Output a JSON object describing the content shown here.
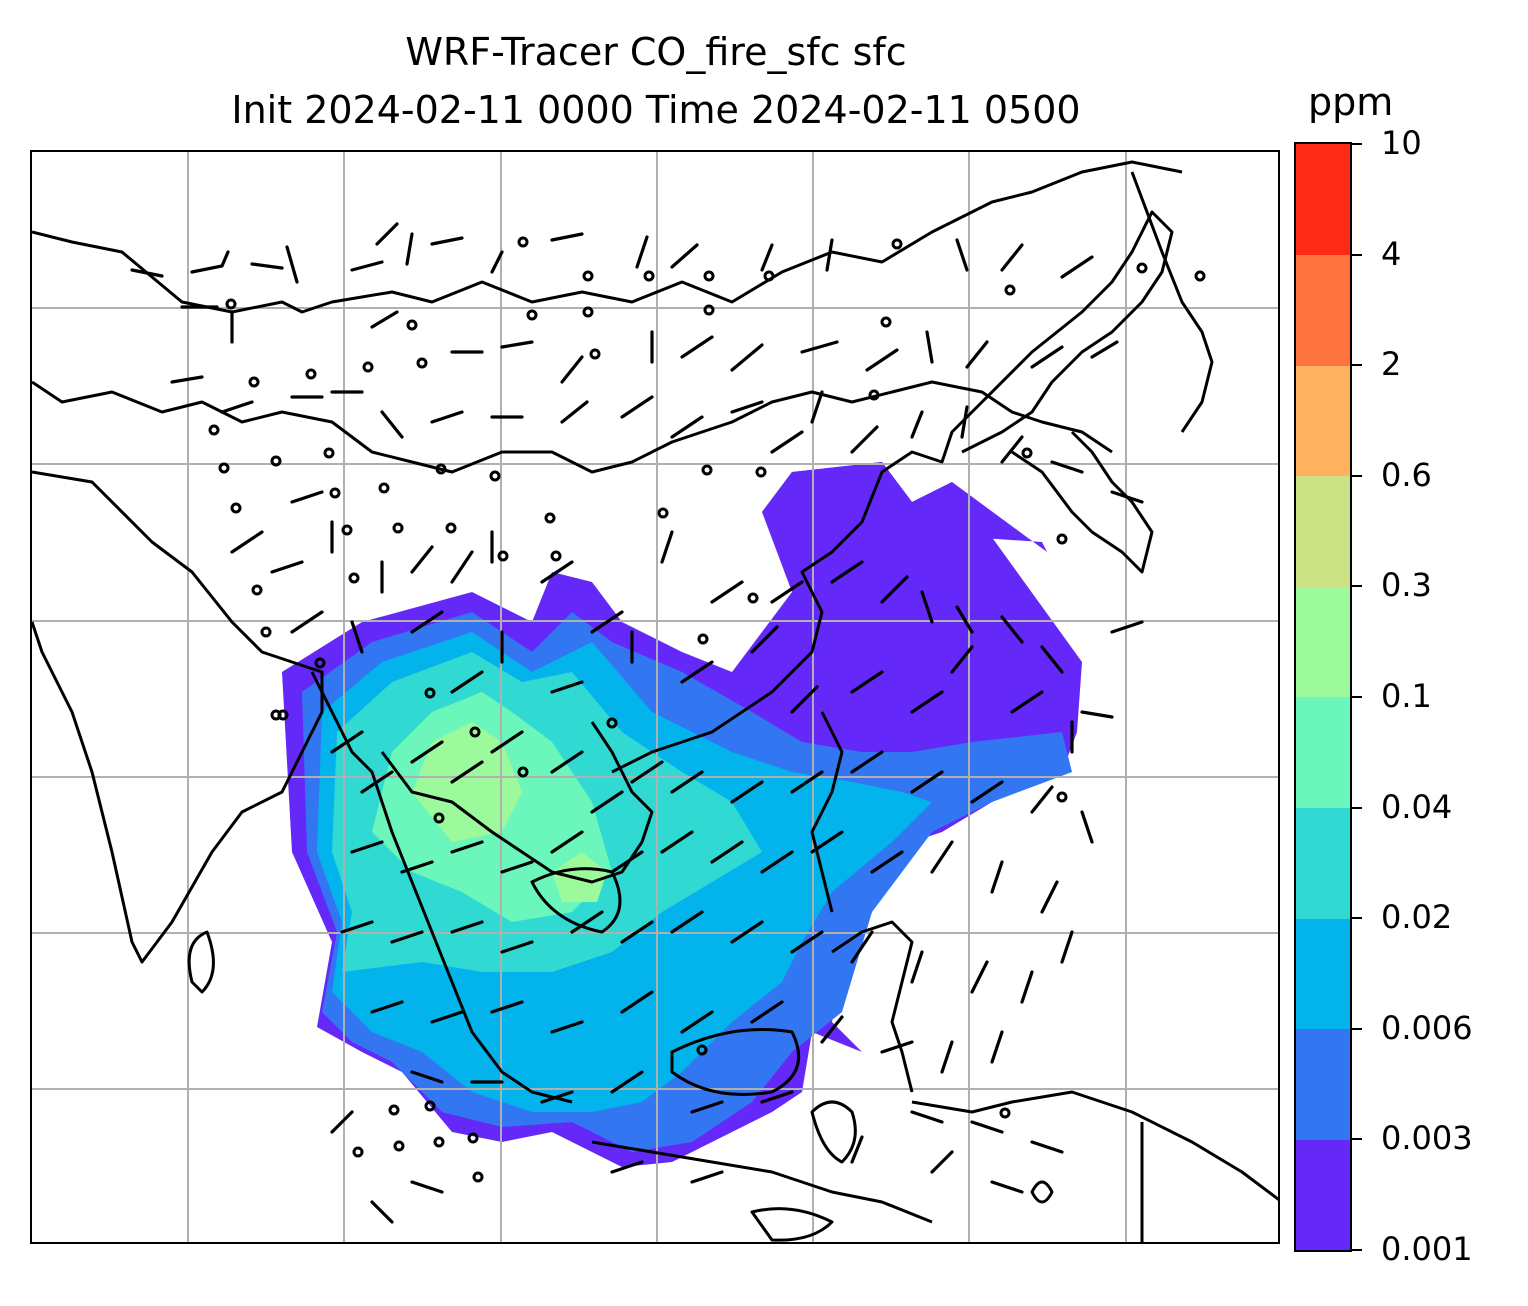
{
  "title": {
    "line1": "WRF-Tracer CO_fire_sfc sfc",
    "line2": "Init 2024-02-11 0000 Time 2024-02-11 0500"
  },
  "colorbar": {
    "unit": "ppm",
    "levels": [
      "0.001",
      "0.003",
      "0.006",
      "0.02",
      "0.04",
      "0.1",
      "0.3",
      "0.6",
      "2",
      "4",
      "10"
    ],
    "colors": [
      "#6428f8",
      "#3276f2",
      "#02b3ec",
      "#30dad3",
      "#6bf7bb",
      "#9cfa9c",
      "#cce184",
      "#feb260",
      "#ff7340",
      "#ff2a15"
    ]
  },
  "map": {
    "gridlines": true,
    "colors": {
      "coast": "#000000",
      "grid": "#b0b0b0",
      "barb": "#000000"
    }
  }
}
